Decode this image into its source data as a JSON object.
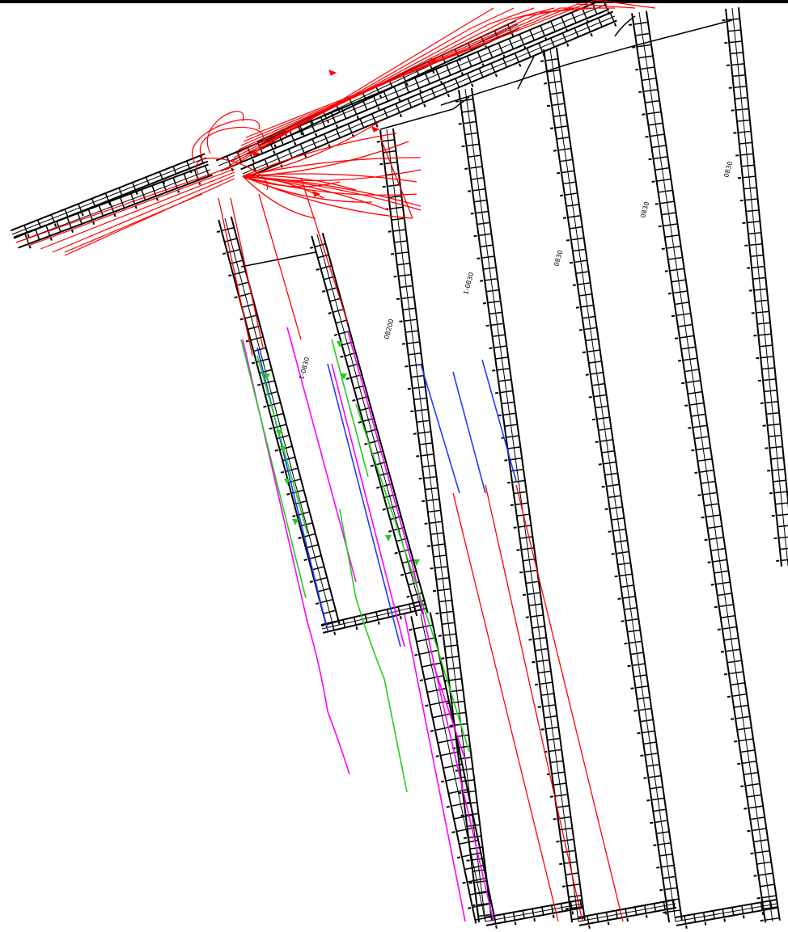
{
  "drawing": {
    "type": "mine-ventilation-plan",
    "colors": {
      "road_outline": "#000000",
      "airflow_main": "#ff0000",
      "route_blue": "#1f3cff",
      "route_green": "#22cc22",
      "route_magenta": "#ff00ff"
    },
    "roadway_labels": [
      {
        "id": "road-1",
        "text": "1-0830"
      },
      {
        "id": "road-2",
        "text": "08200"
      },
      {
        "id": "road-3",
        "text": "1-0830"
      },
      {
        "id": "road-4",
        "text": "0830"
      },
      {
        "id": "road-5",
        "text": "0830"
      },
      {
        "id": "road-6",
        "text": "0830"
      }
    ]
  }
}
